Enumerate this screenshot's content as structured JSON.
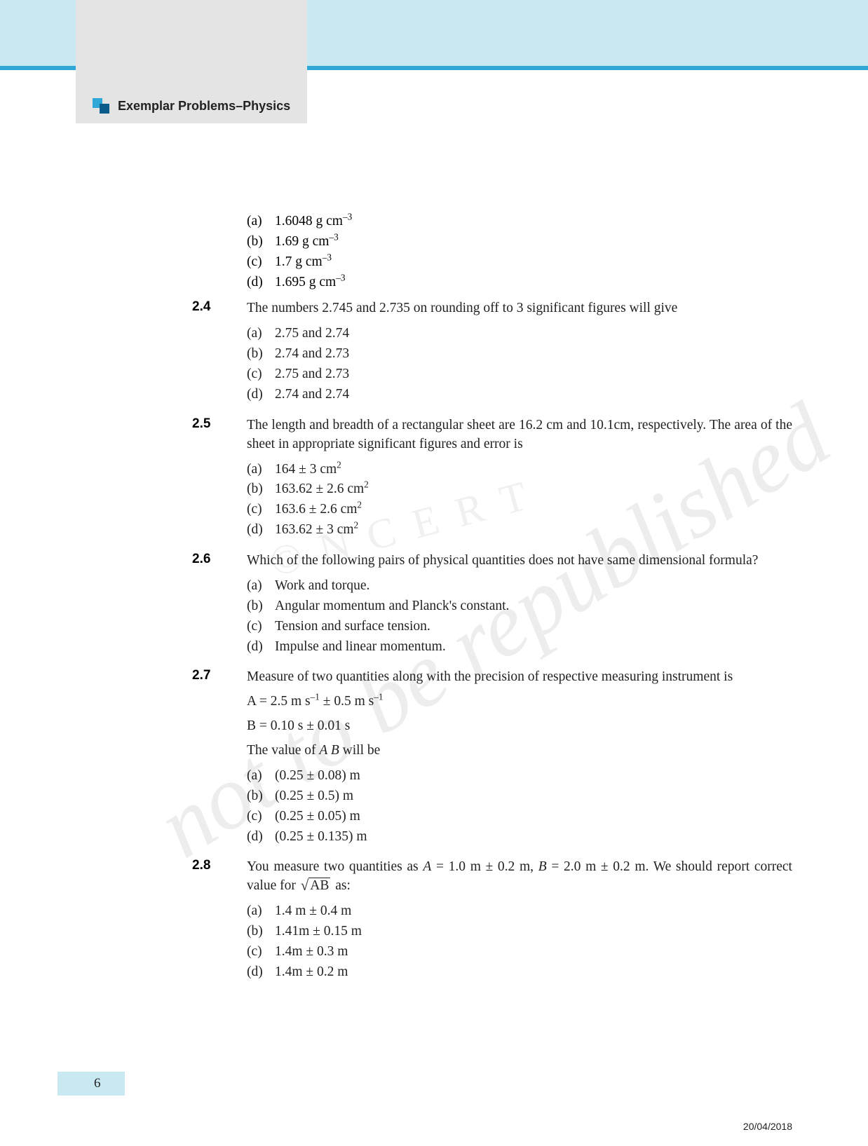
{
  "header": {
    "title": "Exemplar Problems–Physics"
  },
  "watermark": {
    "main": "not to be republished",
    "secondary": "© N C E R T"
  },
  "leadingOptions": [
    {
      "label": "(a)",
      "text": "1.6048 g cm",
      "sup": "–3"
    },
    {
      "label": "(b)",
      "text": "1.69 g cm",
      "sup": "–3"
    },
    {
      "label": "(c)",
      "text": "1.7 g cm",
      "sup": "–3"
    },
    {
      "label": "(d)",
      "text": "1.695 g cm",
      "sup": "–3"
    }
  ],
  "questions": [
    {
      "num": "2.4",
      "text": "The numbers 2.745 and 2.735 on rounding off to 3 significant figures will give",
      "options": [
        {
          "label": "(a)",
          "text": "2.75 and 2.74"
        },
        {
          "label": "(b)",
          "text": "2.74 and 2.73"
        },
        {
          "label": "(c)",
          "text": "2.75 and 2.73"
        },
        {
          "label": "(d)",
          "text": "2.74 and 2.74"
        }
      ]
    },
    {
      "num": "2.5",
      "text": "The length and breadth of a rectangular sheet are 16.2 cm and 10.1cm, respectively. The area of the sheet in appropriate significant figures and error is",
      "options": [
        {
          "label": "(a)",
          "text": "164 ± 3 cm",
          "sup": "2"
        },
        {
          "label": "(b)",
          "text": "163.62  ± 2.6 cm",
          "sup": "2"
        },
        {
          "label": "(c)",
          "text": "163.6  ± 2.6 cm",
          "sup": "2"
        },
        {
          "label": "(d)",
          "text": "163.62   ± 3 cm",
          "sup": "2"
        }
      ]
    },
    {
      "num": "2.6",
      "text": "Which of the following pairs of physical quantities does not have same dimensional formula?",
      "options": [
        {
          "label": "(a)",
          "text": "Work and torque."
        },
        {
          "label": "(b)",
          "text": "Angular momentum and Planck's constant."
        },
        {
          "label": "(c)",
          "text": "Tension and surface tension."
        },
        {
          "label": "(d)",
          "text": "Impulse and linear momentum."
        }
      ]
    },
    {
      "num": "2.7",
      "text": "Measure of two quantities along with the precision of respective measuring instrument is",
      "data": [
        {
          "pre": "A = 2.5 m s",
          "sup1": "–1",
          "mid": " ±  0.5 m s",
          "sup2": "–1"
        },
        {
          "pre": "B = 0.10 s ± 0.01 s"
        }
      ],
      "followup_html": "The value of <span class=\"italic\">A B</span> will be",
      "options": [
        {
          "label": "(a)",
          "text": "(0.25 ± 0.08) m"
        },
        {
          "label": "(b)",
          "text": "(0.25 ± 0.5) m"
        },
        {
          "label": "(c)",
          "text": "(0.25 ± 0.05) m"
        },
        {
          "label": "(d)",
          "text": "(0.25 ± 0.135) m"
        }
      ]
    },
    {
      "num": "2.8",
      "text_html": "You measure two quantities as <span class=\"italic\">A</span> = 1.0 m ± 0.2 m, <span class=\"italic\">B</span> = 2.0 m ± 0.2 m. We should report correct value for <span class=\"sqrt\"><span class=\"sqrt-sign\">√</span><span class=\"sqrt-arg\">AB</span></span>  as:",
      "options": [
        {
          "label": "(a)",
          "text": "1.4 m ± 0.4 m"
        },
        {
          "label": "(b)",
          "text": "1.41m ± 0.15 m"
        },
        {
          "label": "(c)",
          "text": "1.4m ± 0.3 m"
        },
        {
          "label": "(d)",
          "text": "1.4m ± 0.2 m"
        }
      ]
    }
  ],
  "pageNumber": "6",
  "footerDate": "20/04/2018",
  "colors": {
    "topBar": "#c9e9f2",
    "accentLine": "#2fa8d8",
    "headerBlock": "#e4e4e4",
    "text": "#222222",
    "pageBox": "#c9e9f2"
  },
  "typography": {
    "bodyFont": "Georgia, serif",
    "headerFont": "Arial, sans-serif",
    "bodySizePx": 19.5,
    "qnumSizePx": 19,
    "headerTitleSizePx": 18
  }
}
